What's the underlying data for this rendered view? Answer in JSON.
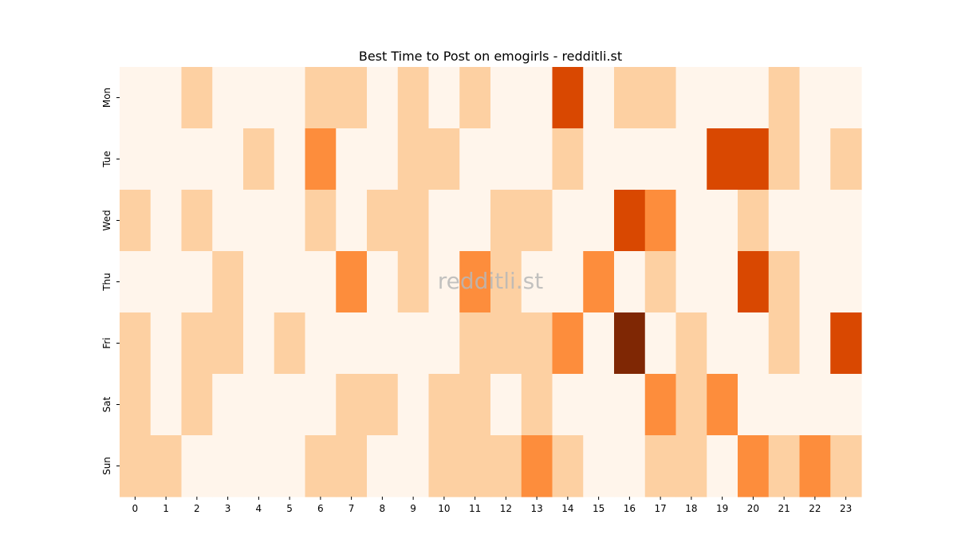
{
  "chart_data": {
    "type": "heatmap",
    "title": "Best Time to Post on emogirls - redditli.st",
    "watermark": "redditli.st",
    "x_labels": [
      "0",
      "1",
      "2",
      "3",
      "4",
      "5",
      "6",
      "7",
      "8",
      "9",
      "10",
      "11",
      "12",
      "13",
      "14",
      "15",
      "16",
      "17",
      "18",
      "19",
      "20",
      "21",
      "22",
      "23"
    ],
    "y_labels": [
      "Mon",
      "Tue",
      "Wed",
      "Thu",
      "Fri",
      "Sat",
      "Sun"
    ],
    "xlabel": "",
    "ylabel": "",
    "colormap": "Oranges",
    "colorbar": false,
    "scale": [
      0,
      4
    ],
    "values": [
      [
        0,
        0,
        1,
        0,
        0,
        0,
        1,
        1,
        0,
        1,
        0,
        1,
        0,
        0,
        3,
        0,
        1,
        1,
        0,
        0,
        0,
        1,
        0,
        0
      ],
      [
        0,
        0,
        0,
        0,
        1,
        0,
        2,
        0,
        0,
        1,
        1,
        0,
        0,
        0,
        1,
        0,
        0,
        0,
        0,
        3,
        3,
        1,
        0,
        1
      ],
      [
        1,
        0,
        1,
        0,
        0,
        0,
        1,
        0,
        1,
        1,
        0,
        0,
        1,
        1,
        0,
        0,
        3,
        2,
        0,
        0,
        1,
        0,
        0,
        0
      ],
      [
        0,
        0,
        0,
        1,
        0,
        0,
        0,
        2,
        0,
        1,
        0,
        2,
        1,
        0,
        0,
        2,
        0,
        1,
        0,
        0,
        3,
        1,
        0,
        0
      ],
      [
        1,
        0,
        1,
        1,
        0,
        1,
        0,
        0,
        0,
        0,
        0,
        1,
        1,
        1,
        2,
        0,
        4,
        0,
        1,
        0,
        0,
        1,
        0,
        3
      ],
      [
        1,
        0,
        1,
        0,
        0,
        0,
        0,
        1,
        1,
        0,
        1,
        1,
        0,
        1,
        0,
        0,
        0,
        2,
        1,
        2,
        0,
        0,
        0,
        0
      ],
      [
        1,
        1,
        0,
        0,
        0,
        0,
        1,
        1,
        0,
        0,
        1,
        1,
        1,
        2,
        1,
        0,
        0,
        1,
        1,
        0,
        2,
        1,
        2,
        1
      ]
    ],
    "colors": {
      "level_0": "#fff5eb",
      "level_1": "#fdd0a2",
      "level_2": "#fd8d3c",
      "level_3": "#d94801",
      "level_4": "#7f2704"
    }
  }
}
